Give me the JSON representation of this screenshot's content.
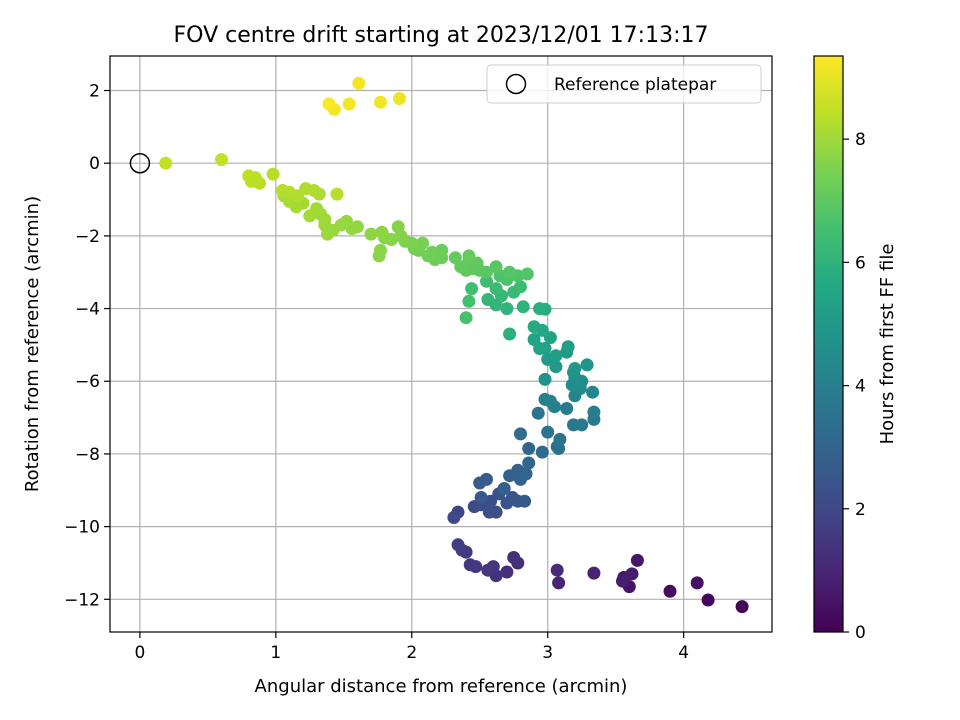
{
  "chart_data": {
    "type": "scatter",
    "title": "FOV centre drift starting at 2023/12/01 17:13:17",
    "xlabel": "Angular distance from reference (arcmin)",
    "ylabel": "Rotation from reference (arcmin)",
    "xlim": [
      -0.22,
      4.65
    ],
    "ylim": [
      -12.9,
      2.95
    ],
    "xticks": [
      0,
      1,
      2,
      3,
      4
    ],
    "yticks": [
      -12,
      -10,
      -8,
      -6,
      -4,
      -2,
      0,
      2
    ],
    "grid": true,
    "legend": {
      "placement": "top-right",
      "entries": [
        "Reference platepar"
      ]
    },
    "reference_point": {
      "x": 0,
      "y": 0
    },
    "colorbar": {
      "label": "Hours from first FF file",
      "colormap": "viridis",
      "range": [
        0,
        9.35
      ],
      "ticks": [
        0,
        2,
        4,
        6,
        8
      ]
    },
    "series": [
      {
        "points": [
          [
            4.43,
            -12.2,
            0.1
          ],
          [
            4.18,
            -12.02,
            0.2
          ],
          [
            3.9,
            -11.78,
            0.3
          ],
          [
            4.1,
            -11.55,
            0.4
          ],
          [
            3.6,
            -11.65,
            0.5
          ],
          [
            3.56,
            -11.4,
            0.55
          ],
          [
            3.66,
            -10.93,
            0.6
          ],
          [
            3.62,
            -11.3,
            0.7
          ],
          [
            3.55,
            -11.5,
            0.8
          ],
          [
            3.34,
            -11.28,
            0.9
          ],
          [
            3.08,
            -11.55,
            1.0
          ],
          [
            3.07,
            -11.2,
            1.1
          ],
          [
            2.78,
            -11.0,
            1.2
          ],
          [
            2.75,
            -10.85,
            1.25
          ],
          [
            2.7,
            -11.25,
            1.3
          ],
          [
            2.62,
            -11.35,
            1.35
          ],
          [
            2.6,
            -11.1,
            1.4
          ],
          [
            2.56,
            -11.2,
            1.45
          ],
          [
            2.47,
            -11.1,
            1.5
          ],
          [
            2.43,
            -11.05,
            1.55
          ],
          [
            2.4,
            -10.7,
            1.6
          ],
          [
            2.37,
            -10.65,
            1.65
          ],
          [
            2.34,
            -10.5,
            1.7
          ],
          [
            2.34,
            -9.6,
            1.9
          ],
          [
            2.31,
            -9.75,
            2.0
          ],
          [
            2.46,
            -9.45,
            2.1
          ],
          [
            2.51,
            -9.4,
            2.15
          ],
          [
            2.57,
            -9.6,
            2.2
          ],
          [
            2.62,
            -9.6,
            2.25
          ],
          [
            2.58,
            -9.3,
            2.3
          ],
          [
            2.64,
            -9.1,
            2.35
          ],
          [
            2.7,
            -9.35,
            2.4
          ],
          [
            2.74,
            -9.2,
            2.45
          ],
          [
            2.78,
            -9.3,
            2.5
          ],
          [
            2.83,
            -9.3,
            2.55
          ],
          [
            2.51,
            -9.2,
            2.6
          ],
          [
            2.5,
            -8.8,
            2.65
          ],
          [
            2.55,
            -8.7,
            2.7
          ],
          [
            2.68,
            -8.95,
            2.8
          ],
          [
            2.72,
            -8.6,
            2.85
          ],
          [
            2.78,
            -8.45,
            2.9
          ],
          [
            2.8,
            -8.7,
            2.95
          ],
          [
            2.84,
            -8.55,
            3.0
          ],
          [
            2.86,
            -8.25,
            3.05
          ],
          [
            2.86,
            -7.85,
            3.1
          ],
          [
            2.96,
            -7.95,
            3.2
          ],
          [
            2.8,
            -7.45,
            3.3
          ],
          [
            3.07,
            -7.8,
            3.4
          ],
          [
            3.08,
            -7.85,
            3.45
          ],
          [
            3.0,
            -7.4,
            3.5
          ],
          [
            3.09,
            -7.6,
            3.55
          ],
          [
            2.93,
            -6.88,
            3.6
          ],
          [
            3.25,
            -7.2,
            3.7
          ],
          [
            3.19,
            -7.2,
            3.75
          ],
          [
            3.34,
            -7.05,
            3.8
          ],
          [
            3.34,
            -6.85,
            3.85
          ],
          [
            3.14,
            -6.75,
            3.9
          ],
          [
            3.05,
            -6.7,
            4.0
          ],
          [
            3.02,
            -6.55,
            4.05
          ],
          [
            2.98,
            -6.5,
            4.1
          ],
          [
            3.2,
            -6.4,
            4.2
          ],
          [
            3.33,
            -6.3,
            4.3
          ],
          [
            3.24,
            -6.2,
            4.4
          ],
          [
            3.18,
            -6.1,
            4.5
          ],
          [
            3.25,
            -6.0,
            4.55
          ],
          [
            3.2,
            -5.9,
            4.6
          ],
          [
            2.98,
            -5.95,
            4.7
          ],
          [
            3.19,
            -5.75,
            4.8
          ],
          [
            3.29,
            -5.55,
            4.85
          ],
          [
            3.2,
            -5.65,
            4.9
          ],
          [
            3.06,
            -5.6,
            5.0
          ],
          [
            3.0,
            -5.4,
            5.05
          ],
          [
            3.14,
            -5.2,
            5.1
          ],
          [
            3.15,
            -5.05,
            5.15
          ],
          [
            3.06,
            -5.3,
            5.2
          ],
          [
            2.98,
            -5.1,
            5.3
          ],
          [
            2.94,
            -5.1,
            5.35
          ],
          [
            3.02,
            -4.8,
            5.4
          ],
          [
            2.9,
            -4.85,
            5.5
          ],
          [
            2.96,
            -4.6,
            5.6
          ],
          [
            2.9,
            -4.5,
            5.7
          ],
          [
            2.98,
            -4.02,
            5.8
          ],
          [
            2.94,
            -4.0,
            5.85
          ],
          [
            2.72,
            -4.7,
            5.9
          ],
          [
            2.82,
            -3.95,
            6.0
          ],
          [
            2.7,
            -4.0,
            6.05
          ],
          [
            2.62,
            -3.9,
            6.1
          ],
          [
            2.56,
            -3.75,
            6.15
          ],
          [
            2.66,
            -3.65,
            6.2
          ],
          [
            2.75,
            -3.55,
            6.25
          ],
          [
            2.8,
            -3.4,
            6.3
          ],
          [
            2.62,
            -3.45,
            6.35
          ],
          [
            2.55,
            -3.25,
            6.4
          ],
          [
            2.44,
            -3.45,
            6.5
          ],
          [
            2.42,
            -3.8,
            6.55
          ],
          [
            2.4,
            -4.25,
            6.6
          ],
          [
            2.65,
            -3.1,
            6.7
          ],
          [
            2.7,
            -3.2,
            6.72
          ],
          [
            2.78,
            -3.1,
            6.75
          ],
          [
            2.85,
            -3.05,
            6.8
          ],
          [
            2.72,
            -3.0,
            6.85
          ],
          [
            2.62,
            -2.85,
            6.9
          ],
          [
            2.55,
            -3.0,
            6.92
          ],
          [
            2.5,
            -2.95,
            6.95
          ],
          [
            2.45,
            -2.9,
            7.0
          ],
          [
            2.48,
            -2.75,
            7.02
          ],
          [
            2.42,
            -2.7,
            7.05
          ],
          [
            2.4,
            -2.95,
            7.08
          ],
          [
            2.36,
            -2.85,
            7.1
          ],
          [
            2.32,
            -2.6,
            7.12
          ],
          [
            2.42,
            -2.55,
            7.15
          ],
          [
            2.22,
            -2.4,
            7.2
          ],
          [
            2.17,
            -2.65,
            7.22
          ],
          [
            2.22,
            -2.6,
            7.25
          ],
          [
            2.15,
            -2.45,
            7.3
          ],
          [
            2.12,
            -2.55,
            7.32
          ],
          [
            2.05,
            -2.4,
            7.35
          ],
          [
            2.02,
            -2.35,
            7.4
          ],
          [
            2.08,
            -2.2,
            7.45
          ],
          [
            2.0,
            -2.2,
            7.5
          ],
          [
            1.95,
            -2.15,
            7.55
          ],
          [
            1.92,
            -2.0,
            7.6
          ],
          [
            1.9,
            -1.75,
            7.62
          ],
          [
            1.85,
            -2.1,
            7.65
          ],
          [
            1.8,
            -2.05,
            7.68
          ],
          [
            1.76,
            -2.55,
            7.7
          ],
          [
            1.77,
            -2.4,
            7.72
          ],
          [
            1.78,
            -1.9,
            7.75
          ],
          [
            1.7,
            -1.95,
            7.78
          ],
          [
            1.6,
            -1.75,
            7.8
          ],
          [
            1.56,
            -1.8,
            7.82
          ],
          [
            1.52,
            -1.6,
            7.85
          ],
          [
            1.48,
            -1.7,
            7.88
          ],
          [
            1.42,
            -1.85,
            7.9
          ],
          [
            1.38,
            -1.95,
            7.92
          ],
          [
            1.36,
            -1.7,
            7.95
          ],
          [
            1.36,
            -1.55,
            7.98
          ],
          [
            1.33,
            -1.4,
            8.0
          ],
          [
            1.3,
            -1.25,
            8.02
          ],
          [
            1.25,
            -1.45,
            8.05
          ],
          [
            1.2,
            -1.1,
            8.08
          ],
          [
            1.15,
            -1.2,
            8.1
          ],
          [
            1.1,
            -1.05,
            8.12
          ],
          [
            1.06,
            -0.9,
            8.15
          ],
          [
            1.32,
            -0.85,
            8.18
          ],
          [
            1.28,
            -0.75,
            8.2
          ],
          [
            1.22,
            -0.7,
            8.22
          ],
          [
            1.16,
            -0.9,
            8.25
          ],
          [
            1.1,
            -0.8,
            8.28
          ],
          [
            1.05,
            -0.75,
            8.3
          ],
          [
            1.45,
            -0.85,
            8.32
          ],
          [
            0.98,
            -0.3,
            8.35
          ],
          [
            0.88,
            -0.55,
            8.38
          ],
          [
            0.82,
            -0.5,
            8.4
          ],
          [
            0.85,
            -0.4,
            8.42
          ],
          [
            0.8,
            -0.35,
            8.45
          ],
          [
            0.6,
            0.1,
            8.48
          ],
          [
            0.19,
            0.0,
            8.5
          ],
          [
            1.91,
            1.78,
            9.1
          ],
          [
            1.77,
            1.68,
            9.15
          ],
          [
            1.61,
            2.2,
            9.2
          ],
          [
            1.54,
            1.63,
            9.22
          ],
          [
            1.43,
            1.48,
            9.25
          ],
          [
            1.39,
            1.63,
            9.3
          ]
        ]
      }
    ]
  }
}
